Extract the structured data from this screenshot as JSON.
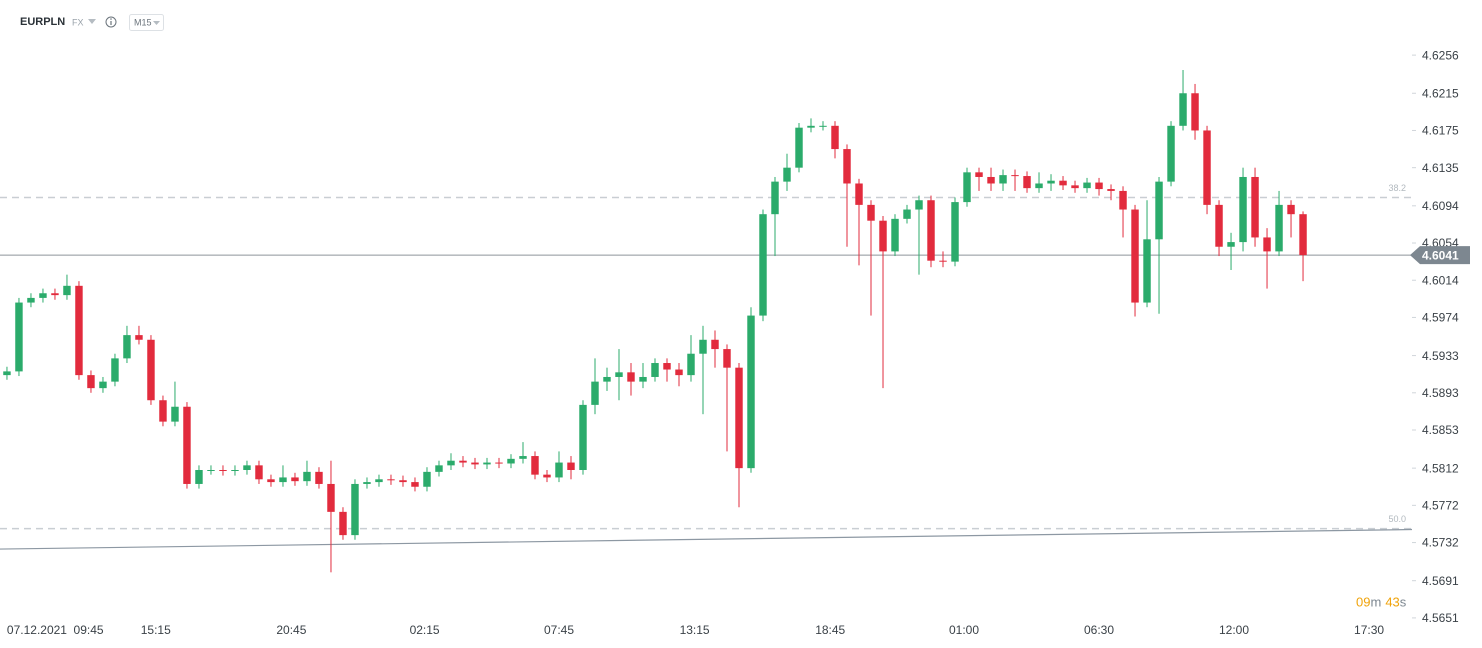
{
  "chart_data": {
    "type": "candlestick",
    "symbol": "EURPLN",
    "market": "FX",
    "timeframe": "M15",
    "up_color": "#2bab6b",
    "down_color": "#e22b3d",
    "ylim": [
      4.5638,
      4.6283
    ],
    "yticks": [
      4.5651,
      4.5691,
      4.5732,
      4.5772,
      4.5812,
      4.5853,
      4.5893,
      4.5933,
      4.5974,
      4.6014,
      4.6054,
      4.6094,
      4.6135,
      4.6175,
      4.6215,
      4.6256
    ],
    "xlim": [
      -0.58,
      117.08
    ],
    "xticks": [
      {
        "value": 2.5,
        "label": "07.12.2021"
      },
      {
        "value": 6.8,
        "label": "09:45"
      },
      {
        "value": 12.4,
        "label": "15:15"
      },
      {
        "value": 23.7,
        "label": "20:45"
      },
      {
        "value": 34.8,
        "label": "02:15"
      },
      {
        "value": 46,
        "label": "07:45"
      },
      {
        "value": 57.3,
        "label": "13:15"
      },
      {
        "value": 68.6,
        "label": "18:45"
      },
      {
        "value": 79.75,
        "label": "01:00"
      },
      {
        "value": 91,
        "label": "06:30"
      },
      {
        "value": 102.25,
        "label": "12:00"
      },
      {
        "value": 113.5,
        "label": "17:30"
      }
    ],
    "open": [
      4.5912,
      4.5916,
      4.599,
      4.5995,
      4.6,
      4.5998,
      4.6008,
      4.5912,
      4.5898,
      4.5905,
      4.593,
      4.5955,
      4.595,
      4.5885,
      4.5862,
      4.5878,
      4.5795,
      4.581,
      4.581,
      4.5809,
      4.581,
      4.5815,
      4.58,
      4.5797,
      4.5802,
      4.5798,
      4.5808,
      4.5795,
      4.5765,
      4.574,
      4.5795,
      4.5797,
      4.58,
      4.5799,
      4.5797,
      4.5792,
      4.5808,
      4.5815,
      4.582,
      4.5818,
      4.5816,
      4.5818,
      4.5817,
      4.5822,
      4.5825,
      4.5805,
      4.5802,
      4.5818,
      4.581,
      4.588,
      4.5905,
      4.591,
      4.5915,
      4.5905,
      4.591,
      4.5925,
      4.5918,
      4.5912,
      4.5935,
      4.595,
      4.594,
      4.592,
      4.5812,
      4.5976,
      4.6085,
      4.612,
      4.6135,
      4.6178,
      4.618,
      4.618,
      4.6155,
      4.6118,
      4.6095,
      4.6078,
      4.6045,
      4.608,
      4.609,
      4.61,
      4.6035,
      4.6034,
      4.6098,
      4.613,
      4.6125,
      4.6118,
      4.6127,
      4.6126,
      4.6113,
      4.6118,
      4.6121,
      4.6116,
      4.6113,
      4.6119,
      4.6112,
      4.611,
      4.609,
      4.599,
      4.6058,
      4.612,
      4.618,
      4.6215,
      4.6175,
      4.6095,
      4.605,
      4.6055,
      4.6125,
      4.606,
      4.6045,
      4.6095,
      4.6085
    ],
    "high": [
      4.5921,
      4.5995,
      4.6,
      4.6005,
      4.6005,
      4.602,
      4.6013,
      4.5917,
      4.591,
      4.5935,
      4.5965,
      4.5965,
      4.5955,
      4.589,
      4.5905,
      4.5883,
      4.5815,
      4.5815,
      4.5815,
      4.5815,
      4.582,
      4.582,
      4.5805,
      4.5815,
      4.5807,
      4.582,
      4.5813,
      4.582,
      4.577,
      4.58,
      4.5802,
      4.5805,
      4.5805,
      4.5804,
      4.5802,
      4.5813,
      4.582,
      4.5828,
      4.5825,
      4.5823,
      4.5823,
      4.5823,
      4.5827,
      4.584,
      4.583,
      4.581,
      4.583,
      4.5825,
      4.5885,
      4.593,
      4.592,
      4.594,
      4.5925,
      4.5925,
      4.593,
      4.593,
      4.5925,
      4.5955,
      4.5965,
      4.596,
      4.5945,
      4.5925,
      4.5985,
      4.609,
      4.6125,
      4.615,
      4.6183,
      4.6188,
      4.6185,
      4.6185,
      4.616,
      4.6123,
      4.61,
      4.6083,
      4.6085,
      4.6095,
      4.6105,
      4.6105,
      4.6045,
      4.6103,
      4.6135,
      4.6135,
      4.6135,
      4.6133,
      4.6133,
      4.6131,
      4.613,
      4.6128,
      4.6126,
      4.6121,
      4.6124,
      4.6124,
      4.6117,
      4.6115,
      4.6095,
      4.61,
      4.6125,
      4.6185,
      4.624,
      4.6225,
      4.618,
      4.61,
      4.6065,
      4.6135,
      4.6135,
      4.607,
      4.611,
      4.61,
      4.6088
    ],
    "low": [
      4.5907,
      4.5911,
      4.5985,
      4.599,
      4.5993,
      4.5993,
      4.5907,
      4.5893,
      4.5893,
      4.59,
      4.5925,
      4.5945,
      4.588,
      4.5857,
      4.5857,
      4.579,
      4.579,
      4.5805,
      4.5804,
      4.5804,
      4.5805,
      4.5795,
      4.5792,
      4.5792,
      4.5793,
      4.5793,
      4.579,
      4.57,
      4.5735,
      4.5735,
      4.579,
      4.5792,
      4.5794,
      4.5792,
      4.5787,
      4.5787,
      4.5803,
      4.581,
      4.5813,
      4.5811,
      4.5811,
      4.5812,
      4.5812,
      4.5817,
      4.58,
      4.5797,
      4.5797,
      4.58,
      4.5805,
      4.587,
      4.5895,
      4.5885,
      4.589,
      4.5898,
      4.5905,
      4.5905,
      4.59,
      4.5905,
      4.587,
      4.592,
      4.583,
      4.577,
      4.5807,
      4.597,
      4.604,
      4.611,
      4.613,
      4.6173,
      4.6175,
      4.6145,
      4.605,
      4.603,
      4.5976,
      4.5898,
      4.604,
      4.6075,
      4.602,
      4.6028,
      4.6028,
      4.6029,
      4.6093,
      4.611,
      4.611,
      4.611,
      4.611,
      4.6108,
      4.6108,
      4.611,
      4.6111,
      4.6108,
      4.6108,
      4.6105,
      4.61,
      4.606,
      4.5975,
      4.5985,
      4.5978,
      4.6115,
      4.6175,
      4.6165,
      4.6085,
      4.604,
      4.6025,
      4.6045,
      4.605,
      4.6005,
      4.604,
      4.606,
      4.6013
    ],
    "close": [
      4.5916,
      4.599,
      4.5995,
      4.6,
      4.5998,
      4.6008,
      4.5912,
      4.5898,
      4.5905,
      4.593,
      4.5955,
      4.595,
      4.5885,
      4.5862,
      4.5878,
      4.5795,
      4.581,
      4.581,
      4.5809,
      4.581,
      4.5815,
      4.58,
      4.5797,
      4.5802,
      4.5798,
      4.5808,
      4.5795,
      4.5765,
      4.574,
      4.5795,
      4.5797,
      4.58,
      4.5799,
      4.5797,
      4.5792,
      4.5808,
      4.5815,
      4.582,
      4.5818,
      4.5816,
      4.5818,
      4.5817,
      4.5822,
      4.5825,
      4.5805,
      4.5802,
      4.5818,
      4.581,
      4.588,
      4.5905,
      4.591,
      4.5915,
      4.5905,
      4.591,
      4.5925,
      4.5918,
      4.5912,
      4.5935,
      4.595,
      4.594,
      4.592,
      4.5812,
      4.5976,
      4.6085,
      4.612,
      4.6135,
      4.6178,
      4.618,
      4.618,
      4.6155,
      4.6118,
      4.6095,
      4.6078,
      4.6045,
      4.608,
      4.609,
      4.61,
      4.6035,
      4.6034,
      4.6098,
      4.613,
      4.6125,
      4.6118,
      4.6127,
      4.6126,
      4.6113,
      4.6118,
      4.6121,
      4.6116,
      4.6113,
      4.6119,
      4.6112,
      4.611,
      4.609,
      4.599,
      4.6058,
      4.612,
      4.618,
      4.6215,
      4.6175,
      4.6095,
      4.605,
      4.6055,
      4.6125,
      4.606,
      4.6045,
      4.6095,
      4.6085,
      4.6041
    ],
    "current_price": 4.6041,
    "levels": [
      {
        "label": "38.2",
        "value": 4.6103
      },
      {
        "label": "50.0",
        "value": 4.5747
      }
    ],
    "trendline": [
      4.5725,
      4.5746
    ],
    "countdown": {
      "minutes": "09",
      "minutes_unit": "m",
      "seconds": "43",
      "seconds_unit": "s"
    }
  }
}
